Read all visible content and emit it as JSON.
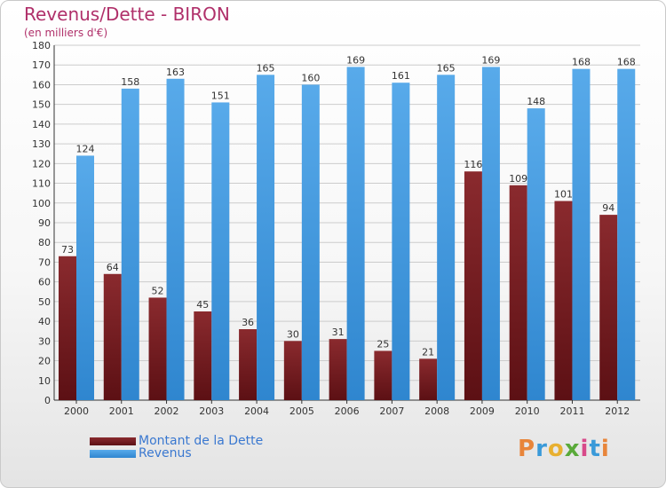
{
  "title": "Revenus/Dette - BIRON",
  "subtitle": "(en milliers d'€)",
  "colors": {
    "title": "#b0306a",
    "dette": "#7a1e22",
    "revenus": "#4a9fe0",
    "legend_text": "#3a78d0",
    "grid": "#cccccc"
  },
  "chart_data": {
    "type": "bar",
    "categories": [
      "2000",
      "2001",
      "2002",
      "2003",
      "2004",
      "2005",
      "2006",
      "2007",
      "2008",
      "2009",
      "2010",
      "2011",
      "2012"
    ],
    "series": [
      {
        "name": "Montant de la Dette",
        "values": [
          73,
          64,
          52,
          45,
          36,
          30,
          31,
          25,
          21,
          116,
          109,
          101,
          94
        ]
      },
      {
        "name": "Revenus",
        "values": [
          124,
          158,
          163,
          151,
          165,
          160,
          169,
          161,
          165,
          169,
          148,
          168,
          168
        ]
      }
    ],
    "ylim": [
      0,
      180
    ],
    "ytick_step": 10,
    "grid": true,
    "legend_position": "bottom-left"
  },
  "logo": {
    "text": "Proxiti",
    "letter_colors": [
      "#e8853a",
      "#3a9ad9",
      "#e8b030",
      "#5aaa3a",
      "#d84a8a",
      "#3a9ad9",
      "#e8853a"
    ]
  }
}
